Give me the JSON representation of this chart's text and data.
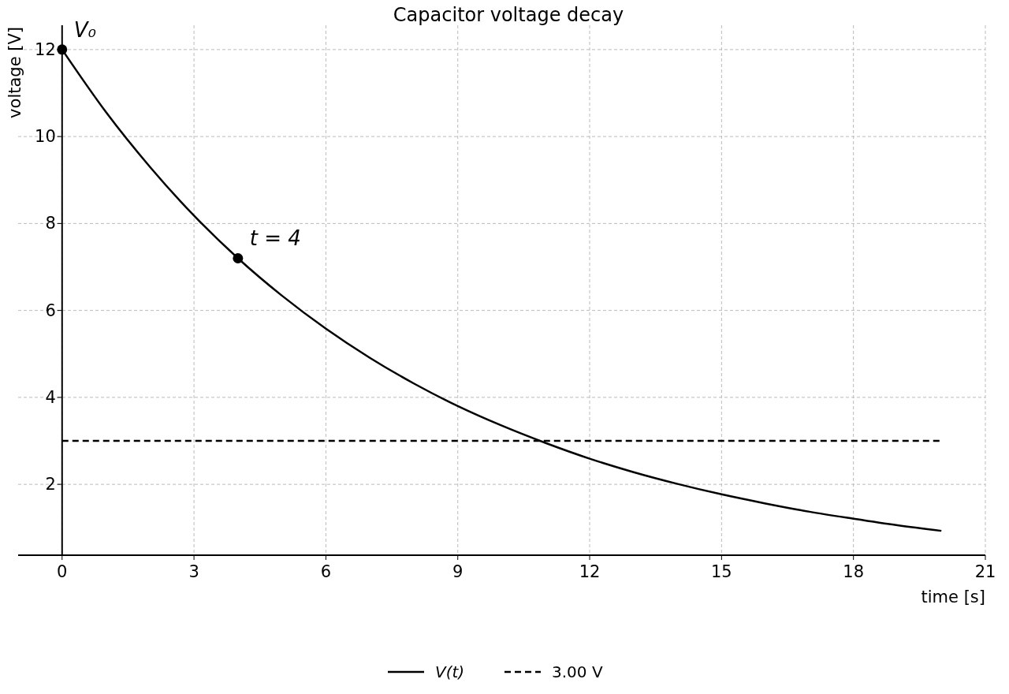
{
  "chart_data": {
    "type": "line",
    "title": "Capacitor voltage decay",
    "xlabel": "time [s]",
    "ylabel": "voltage [V]",
    "xlim": [
      -1,
      21
    ],
    "xticks": [
      0,
      3,
      6,
      9,
      12,
      15,
      18,
      21
    ],
    "ylim": [
      0.37,
      12.56
    ],
    "yticks": [
      2,
      4,
      6,
      8,
      10,
      12
    ],
    "grid": true,
    "legend": "bottom",
    "series": [
      {
        "name": "V(t)",
        "color": "#000000",
        "line_style": "solid",
        "x": [
          0,
          1,
          2,
          3,
          4,
          5,
          6,
          7,
          8,
          9,
          10,
          11,
          12,
          13,
          14,
          15,
          16,
          17,
          18,
          19,
          20
        ],
        "values": [
          12,
          10.56,
          9.3,
          8.18,
          7.2,
          6.34,
          5.58,
          4.91,
          4.32,
          3.8,
          3.35,
          2.95,
          2.59,
          2.28,
          2.01,
          1.77,
          1.56,
          1.37,
          1.21,
          1.06,
          0.93
        ]
      },
      {
        "type": "scatter",
        "color": "#000000",
        "marker": "circle",
        "x": [
          0,
          4
        ],
        "values": [
          12,
          7.2
        ]
      }
    ],
    "ref_lines": [
      {
        "axis": "y",
        "value": 3,
        "label": "3.00 V",
        "color": "#000000",
        "line_style": "dashed"
      }
    ],
    "annotations": [
      {
        "text": "V₀",
        "x": 0,
        "y": 12
      },
      {
        "text": "t = 4",
        "x": 4,
        "y": 7.2
      }
    ]
  }
}
